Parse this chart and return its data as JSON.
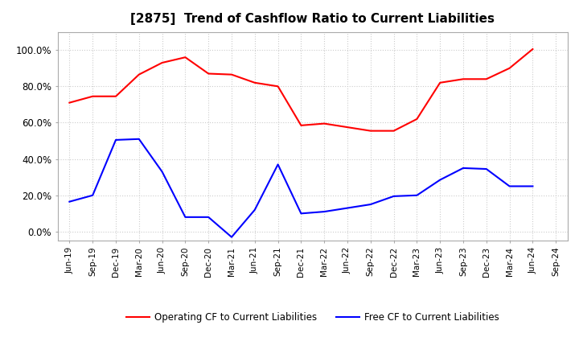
{
  "title": "[2875]  Trend of Cashflow Ratio to Current Liabilities",
  "x_labels": [
    "Jun-19",
    "Sep-19",
    "Dec-19",
    "Mar-20",
    "Jun-20",
    "Sep-20",
    "Dec-20",
    "Mar-21",
    "Jun-21",
    "Sep-21",
    "Dec-21",
    "Mar-22",
    "Jun-22",
    "Sep-22",
    "Dec-22",
    "Mar-23",
    "Jun-23",
    "Sep-23",
    "Dec-23",
    "Mar-24",
    "Jun-24",
    "Sep-24"
  ],
  "operating_cf": [
    0.71,
    0.745,
    0.745,
    0.865,
    0.93,
    0.96,
    0.87,
    0.865,
    0.82,
    0.8,
    0.585,
    0.595,
    0.575,
    0.555,
    0.555,
    0.62,
    0.82,
    0.84,
    0.84,
    0.9,
    1.005,
    null
  ],
  "free_cf": [
    0.165,
    0.2,
    0.505,
    0.51,
    0.33,
    0.08,
    0.08,
    -0.03,
    0.12,
    0.37,
    0.1,
    0.11,
    0.13,
    0.15,
    0.195,
    0.2,
    0.285,
    0.35,
    0.345,
    0.25,
    0.25,
    null
  ],
  "operating_color": "#ff0000",
  "free_color": "#0000ff",
  "ylim": [
    -0.05,
    1.1
  ],
  "yticks": [
    0.0,
    0.2,
    0.4,
    0.6,
    0.8,
    1.0
  ],
  "ytick_labels": [
    "0.0%",
    "20.0%",
    "40.0%",
    "60.0%",
    "80.0%",
    "100.0%"
  ],
  "background_color": "#ffffff",
  "grid_color": "#cccccc",
  "title_fontsize": 11,
  "legend_operating": "Operating CF to Current Liabilities",
  "legend_free": "Free CF to Current Liabilities"
}
